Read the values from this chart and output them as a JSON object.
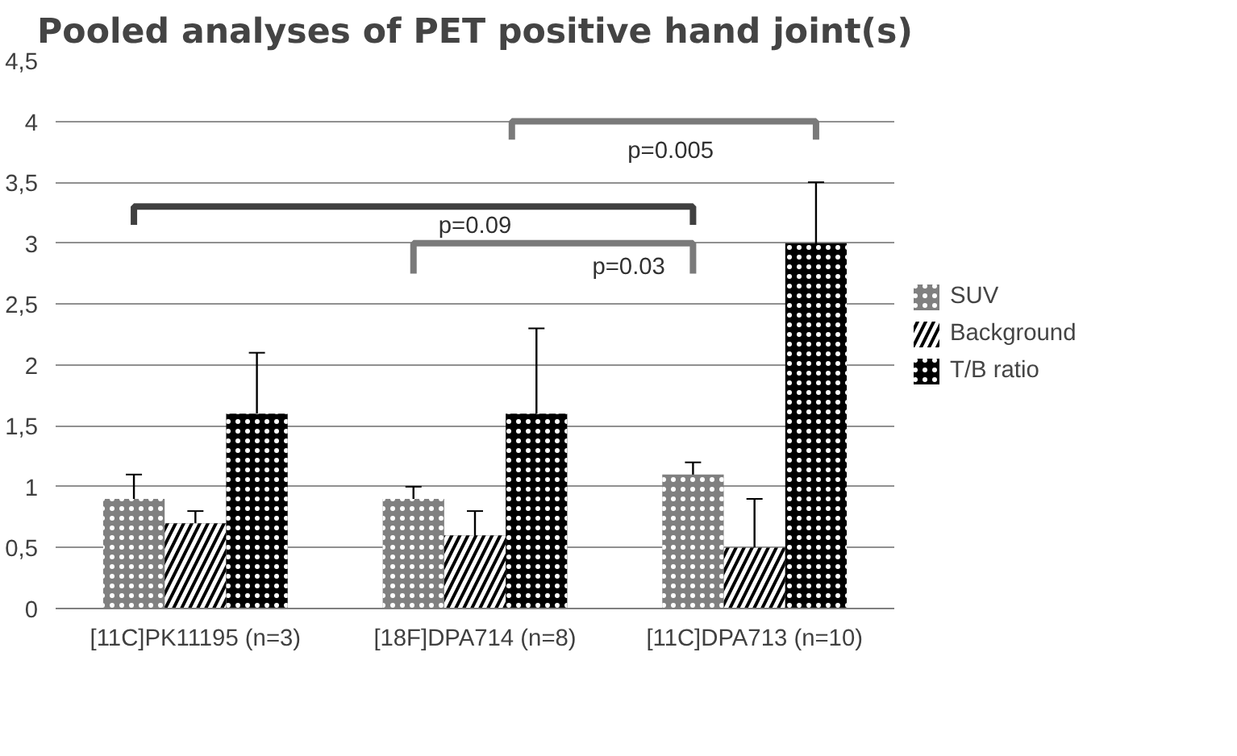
{
  "chart_data": {
    "type": "bar",
    "title": "Pooled analyses of PET positive hand joint(s)",
    "categories": [
      "[11C]PK11195 (n=3)",
      "[18F]DPA714 (n=8)",
      "[11C]DPA713 (n=10)"
    ],
    "series": [
      {
        "name": "SUV",
        "color": "#808080",
        "values": [
          0.9,
          0.9,
          1.1
        ],
        "errors": [
          0.2,
          0.1,
          0.1
        ]
      },
      {
        "name": "Background",
        "color": "#000000",
        "values": [
          0.7,
          0.6,
          0.5
        ],
        "errors": [
          0.1,
          0.2,
          0.4
        ]
      },
      {
        "name": "T/B ratio",
        "color": "#000000",
        "values": [
          1.6,
          1.6,
          3.0
        ],
        "errors": [
          0.5,
          0.7,
          0.5
        ]
      }
    ],
    "ylim": [
      0,
      4.5
    ],
    "yticks": [
      0,
      {
        "value": 0.5,
        "label": "0,5"
      },
      1,
      {
        "value": 1.5,
        "label": "1,5"
      },
      2,
      {
        "value": 2.5,
        "label": "2,5"
      },
      3,
      {
        "value": 3.5,
        "label": "3,5"
      },
      4,
      {
        "value": 4.5,
        "label": "4,5"
      }
    ],
    "grid": "y",
    "legend": "right",
    "annotations": [
      "p=0.09",
      "p=0.03",
      "p=0.005"
    ]
  }
}
